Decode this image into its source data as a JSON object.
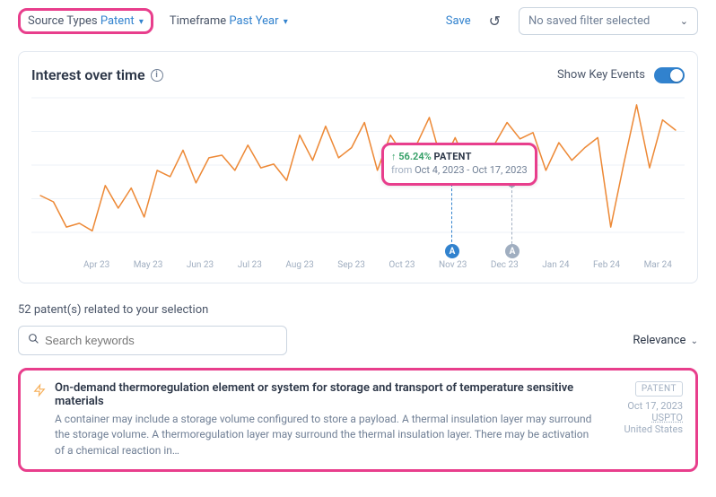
{
  "filters": {
    "source_label": "Source Types",
    "source_value": "Patent",
    "timeframe_label": "Timeframe",
    "timeframe_value": "Past Year",
    "save_label": "Save",
    "saved_placeholder": "No saved filter selected"
  },
  "chart": {
    "title": "Interest over time",
    "key_events_label": "Show Key Events",
    "key_events_on": true,
    "type": "line",
    "line_color": "#ed8936",
    "background_color": "#ffffff",
    "grid_color": "#edf2f7",
    "y_grid_lines": 5,
    "x_labels": [
      "Apr 23",
      "May 23",
      "Jun 23",
      "Jul 23",
      "Aug 23",
      "Sep 23",
      "Oct 23",
      "Nov 23",
      "Dec 23",
      "Jan 24",
      "Feb 24",
      "Mar 24"
    ],
    "series": [
      40,
      35,
      15,
      18,
      12,
      48,
      30,
      46,
      23,
      60,
      55,
      76,
      50,
      70,
      72,
      60,
      80,
      62,
      65,
      52,
      88,
      68,
      95,
      70,
      78,
      98,
      60,
      88,
      72,
      80,
      102,
      65,
      86,
      62,
      68,
      80,
      98,
      85,
      90,
      60,
      82,
      68,
      78,
      86,
      15,
      65,
      112,
      62,
      100,
      92
    ],
    "tooltip": {
      "arrow": "↑",
      "pct": "56.24%",
      "type": "PATENT",
      "from_label": "from",
      "range": "Oct 4, 2023 - Oct 17, 2023",
      "pct_color": "#38a169"
    },
    "events": [
      {
        "label": "A",
        "color": "#3182ce",
        "x_index": 27
      },
      {
        "label": "A",
        "color": "#a0aec0",
        "x_index": 31
      }
    ]
  },
  "results": {
    "count_text": "52 patent(s) related to your selection",
    "search_placeholder": "Search keywords",
    "sort_label": "Relevance",
    "items": [
      {
        "title": "On-demand thermoregulation element or system for storage and transport of temperature sensitive materials",
        "desc": "A container may include a storage volume configured to store a payload. A thermal insulation layer may surround the storage volume. A thermoregulation layer may surround the thermal insulation layer. There may be activation of a chemical reaction in…",
        "badge": "PATENT",
        "date": "Oct 17, 2023",
        "source": "USPTO",
        "country": "United States"
      }
    ]
  }
}
